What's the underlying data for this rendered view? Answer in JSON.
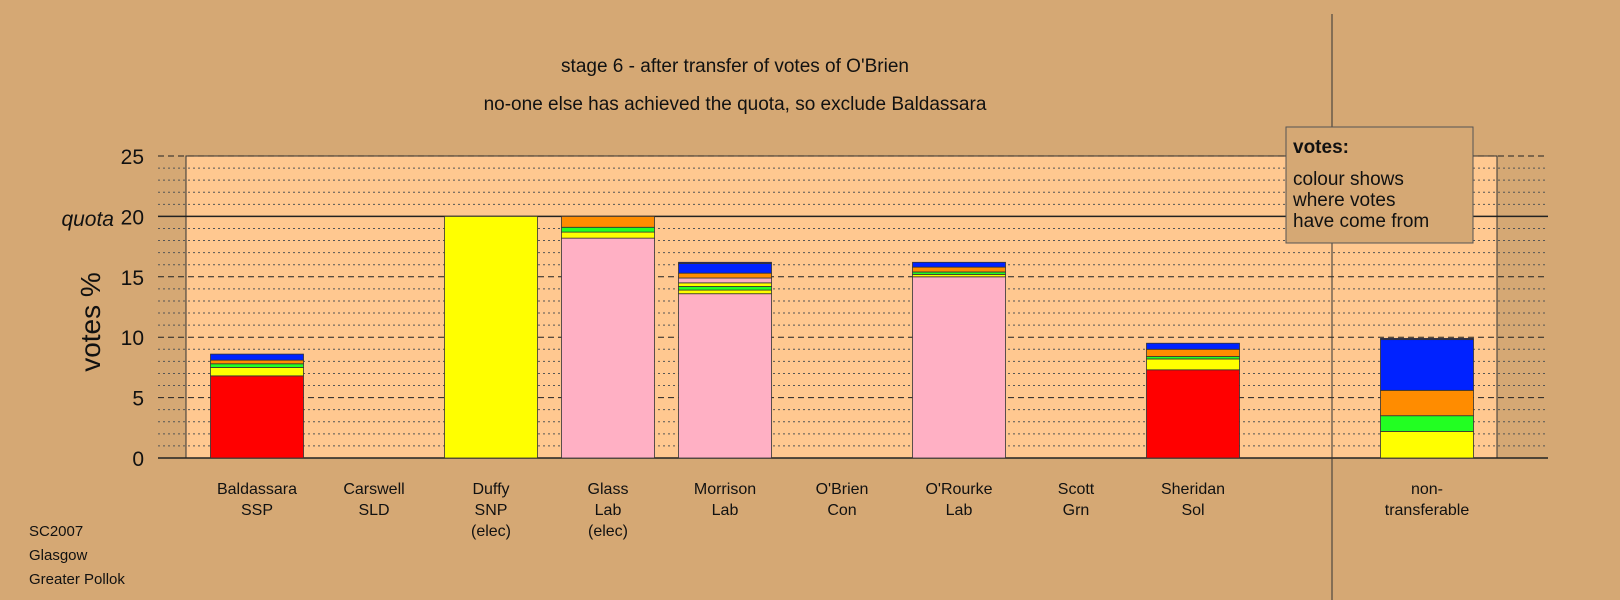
{
  "chart_data": {
    "type": "bar",
    "stacked": true,
    "title": "stage 6 - after transfer of votes of O'Brien",
    "subtitle": "no-one else has achieved the quota, so exclude Baldassara",
    "ylabel": "votes %",
    "ylim": [
      0,
      25
    ],
    "yticks": [
      0,
      5,
      10,
      15,
      20,
      25
    ],
    "quota": 20,
    "quota_label": "quota",
    "grid": true,
    "legend": {
      "placement": "top-right",
      "title": "votes:",
      "lines": [
        "colour shows",
        "where votes",
        "have come from"
      ]
    },
    "categories": [
      {
        "name": "Baldassara",
        "lines": [
          "Baldassara",
          "SSP"
        ]
      },
      {
        "name": "Carswell",
        "lines": [
          "Carswell",
          "SLD"
        ]
      },
      {
        "name": "Duffy",
        "lines": [
          "Duffy",
          "SNP",
          "(elec)"
        ]
      },
      {
        "name": "Glass",
        "lines": [
          "Glass",
          "Lab",
          "(elec)"
        ]
      },
      {
        "name": "Morrison",
        "lines": [
          "Morrison",
          "Lab"
        ]
      },
      {
        "name": "O'Brien",
        "lines": [
          "O'Brien",
          "Con"
        ]
      },
      {
        "name": "O'Rourke",
        "lines": [
          "O'Rourke",
          "Lab"
        ]
      },
      {
        "name": "Scott",
        "lines": [
          "Scott",
          "Grn"
        ]
      },
      {
        "name": "Sheridan",
        "lines": [
          "Sheridan",
          "Sol"
        ]
      },
      {
        "name": "non-transferable",
        "lines": [
          "non-",
          "transferable"
        ]
      }
    ],
    "series_colors": {
      "red": "#FF0000",
      "pink": "#FFB0C4",
      "yellow": "#FFFF00",
      "green": "#22FF22",
      "orange": "#FF8C00",
      "blue": "#0022FF",
      "navy": "#22228C"
    },
    "stacks": [
      [
        {
          "color": "red",
          "value": 6.8
        },
        {
          "color": "yellow",
          "value": 0.7
        },
        {
          "color": "green",
          "value": 0.3
        },
        {
          "color": "orange",
          "value": 0.3
        },
        {
          "color": "blue",
          "value": 0.5
        }
      ],
      [],
      [
        {
          "color": "yellow",
          "value": 20.0
        }
      ],
      [
        {
          "color": "pink",
          "value": 18.2
        },
        {
          "color": "yellow",
          "value": 0.5
        },
        {
          "color": "green",
          "value": 0.4
        },
        {
          "color": "orange",
          "value": 0.9
        }
      ],
      [
        {
          "color": "pink",
          "value": 13.6
        },
        {
          "color": "yellow",
          "value": 0.3
        },
        {
          "color": "green",
          "value": 0.3
        },
        {
          "color": "yellow",
          "value": 0.3
        },
        {
          "color": "pink",
          "value": 0.4
        },
        {
          "color": "orange",
          "value": 0.4
        },
        {
          "color": "blue",
          "value": 0.8
        },
        {
          "color": "navy",
          "value": 0.1
        }
      ],
      [],
      [
        {
          "color": "pink",
          "value": 15.0
        },
        {
          "color": "yellow",
          "value": 0.2
        },
        {
          "color": "green",
          "value": 0.2
        },
        {
          "color": "orange",
          "value": 0.4
        },
        {
          "color": "blue",
          "value": 0.4
        }
      ],
      [],
      [
        {
          "color": "red",
          "value": 7.3
        },
        {
          "color": "yellow",
          "value": 0.9
        },
        {
          "color": "green",
          "value": 0.2
        },
        {
          "color": "orange",
          "value": 0.6
        },
        {
          "color": "blue",
          "value": 0.5
        }
      ],
      [
        {
          "color": "yellow",
          "value": 2.2
        },
        {
          "color": "green",
          "value": 1.3
        },
        {
          "color": "orange",
          "value": 2.1
        },
        {
          "color": "blue",
          "value": 4.2
        },
        {
          "color": "navy",
          "value": 0.1
        }
      ]
    ]
  },
  "footer": {
    "lines": [
      "SC2007",
      "Glasgow",
      "Greater Pollok"
    ]
  }
}
